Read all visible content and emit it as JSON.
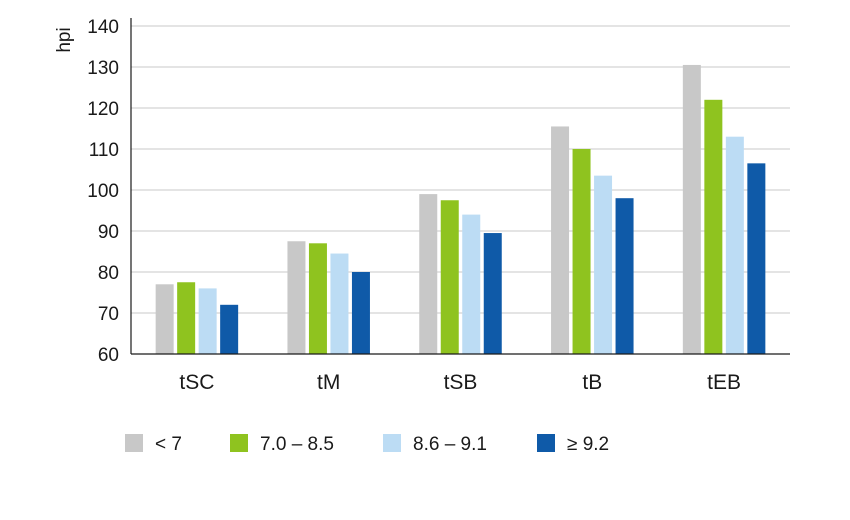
{
  "chart_data": {
    "type": "bar",
    "title": "",
    "xlabel": "",
    "ylabel": "hpi",
    "ylim": [
      60,
      140
    ],
    "yticks": [
      60,
      70,
      80,
      90,
      100,
      110,
      120,
      130,
      140
    ],
    "grid": true,
    "legend_position": "bottom",
    "categories": [
      "tSC",
      "tM",
      "tSB",
      "tB",
      "tEB"
    ],
    "series": [
      {
        "name": "< 7",
        "color": "#c8c8c8",
        "values": [
          77,
          87.5,
          99,
          115.5,
          130.5
        ]
      },
      {
        "name": "7.0 – 8.5",
        "color": "#8fc31f",
        "values": [
          77.5,
          87,
          97.5,
          110,
          122
        ]
      },
      {
        "name": "8.6 – 9.1",
        "color": "#bcdcf4",
        "values": [
          76,
          84.5,
          94,
          103.5,
          113
        ]
      },
      {
        "name": "≥ 9.2",
        "color": "#0f5aa8",
        "values": [
          72,
          80,
          89.5,
          98,
          106.5
        ]
      }
    ]
  }
}
